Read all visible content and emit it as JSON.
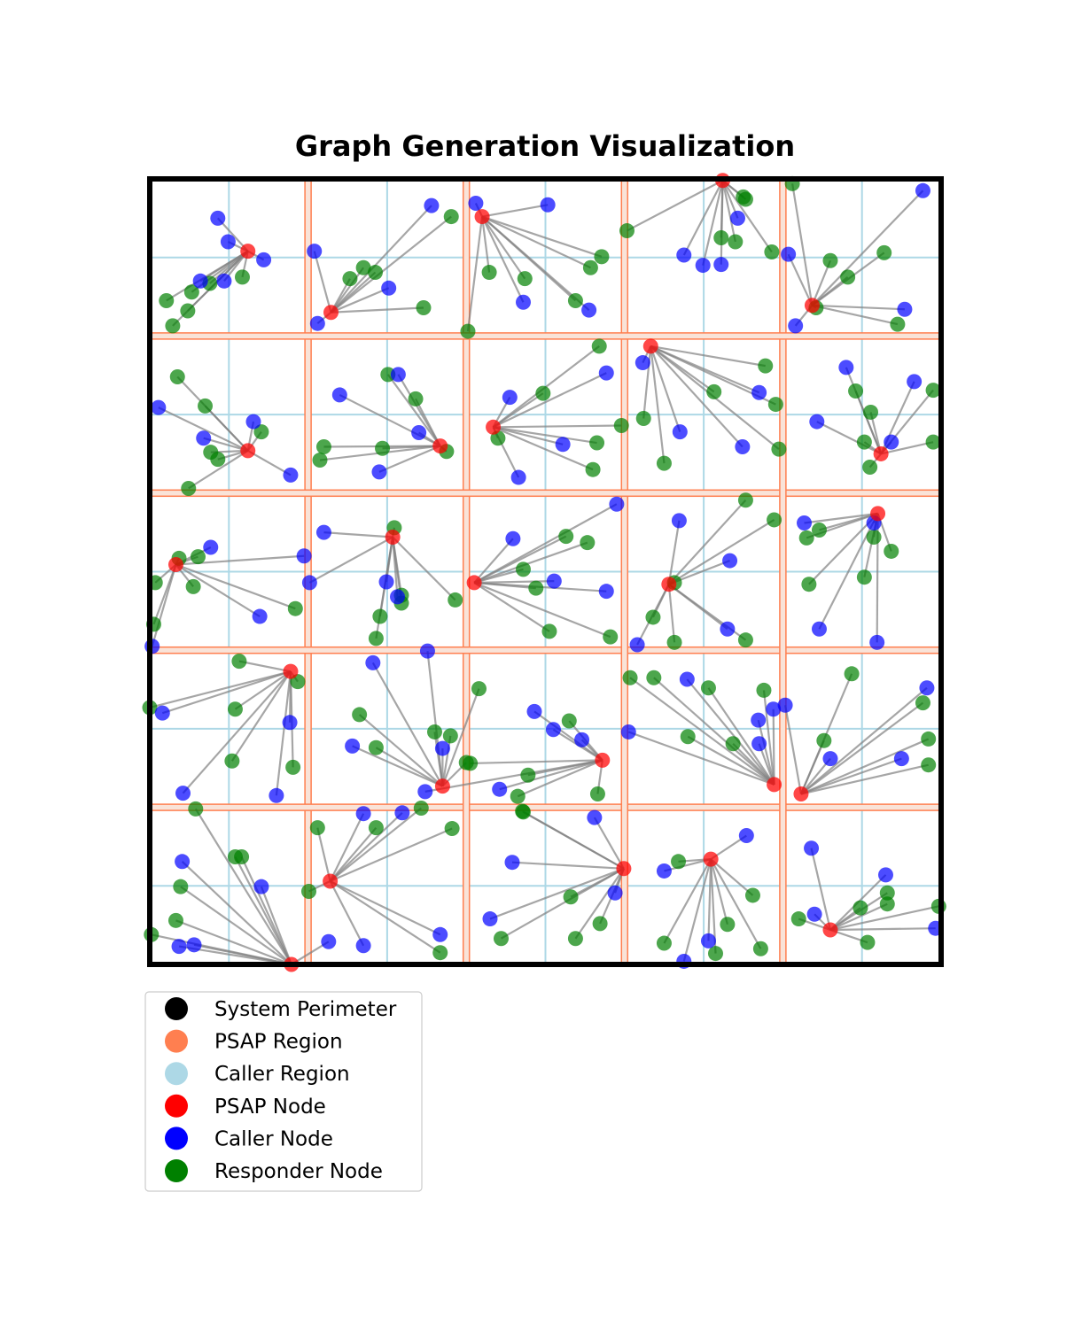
{
  "chart_data": {
    "type": "scatter",
    "title": "Graph Generation Visualization",
    "xlim": [
      0,
      10
    ],
    "ylim": [
      0,
      10
    ],
    "grid": {
      "psap_region_lines": [
        2,
        4,
        6,
        8
      ],
      "caller_region_lines": [
        1,
        3,
        5,
        7,
        9
      ]
    },
    "colors": {
      "perimeter": "#000000",
      "psap_region": "#ff7f50",
      "caller_region": "#add8e6",
      "psap_node": "#ff0000",
      "caller_node": "#0000ff",
      "responder_node": "#008000",
      "edge": "#808080"
    },
    "legend": {
      "placement": "bottom-left",
      "items": [
        {
          "label": "System Perimeter",
          "color": "#000000"
        },
        {
          "label": "PSAP Region",
          "color": "#ff7f50"
        },
        {
          "label": "Caller Region",
          "color": "#add8e6"
        },
        {
          "label": "PSAP Node",
          "color": "#ff0000"
        },
        {
          "label": "Caller Node",
          "color": "#0000ff"
        },
        {
          "label": "Responder Node",
          "color": "#008000"
        }
      ]
    },
    "clusters": [
      {
        "psap": [
          1.24,
          9.08
        ],
        "callers": [
          [
            0.86,
            9.5
          ],
          [
            0.99,
            9.2
          ],
          [
            1.44,
            8.97
          ],
          [
            0.64,
            8.7
          ],
          [
            0.94,
            8.7
          ]
        ],
        "responders": [
          [
            1.17,
            8.75
          ],
          [
            0.76,
            8.67
          ],
          [
            0.53,
            8.56
          ],
          [
            0.21,
            8.45
          ],
          [
            0.48,
            8.32
          ],
          [
            0.29,
            8.13
          ]
        ]
      },
      {
        "psap": [
          2.29,
          8.3
        ],
        "callers": [
          [
            3.56,
            9.66
          ],
          [
            2.08,
            9.08
          ],
          [
            2.12,
            8.16
          ],
          [
            3.02,
            8.61
          ]
        ],
        "responders": [
          [
            3.81,
            9.52
          ],
          [
            2.7,
            8.87
          ],
          [
            2.53,
            8.73
          ],
          [
            2.85,
            8.81
          ],
          [
            3.46,
            8.36
          ]
        ]
      },
      {
        "psap": [
          4.2,
          9.52
        ],
        "callers": [
          [
            4.12,
            9.69
          ],
          [
            5.03,
            9.67
          ],
          [
            4.72,
            8.43
          ],
          [
            5.55,
            8.33
          ]
        ],
        "responders": [
          [
            5.71,
            9.01
          ],
          [
            5.57,
            8.87
          ],
          [
            4.29,
            8.81
          ],
          [
            4.74,
            8.73
          ],
          [
            5.38,
            8.45
          ],
          [
            4.02,
            8.06
          ]
        ]
      },
      {
        "psap": [
          7.24,
          9.98
        ],
        "callers": [
          [
            7.43,
            9.5
          ],
          [
            6.75,
            9.03
          ],
          [
            6.99,
            8.9
          ],
          [
            7.22,
            8.91
          ]
        ],
        "responders": [
          [
            7.5,
            9.77
          ],
          [
            7.53,
            9.74
          ],
          [
            6.03,
            9.34
          ],
          [
            7.22,
            9.25
          ],
          [
            7.4,
            9.2
          ],
          [
            7.86,
            9.07
          ]
        ]
      },
      {
        "psap": [
          8.37,
          8.39
        ],
        "callers": [
          [
            9.77,
            9.85
          ],
          [
            8.07,
            9.04
          ],
          [
            9.54,
            8.34
          ],
          [
            8.16,
            8.13
          ]
        ],
        "responders": [
          [
            8.12,
            9.94
          ],
          [
            9.28,
            9.06
          ],
          [
            8.6,
            8.96
          ],
          [
            8.82,
            8.75
          ],
          [
            8.42,
            8.36
          ],
          [
            9.45,
            8.15
          ]
        ]
      },
      {
        "psap": [
          1.24,
          6.54
        ],
        "callers": [
          [
            0.11,
            7.09
          ],
          [
            1.31,
            6.91
          ],
          [
            0.68,
            6.7
          ],
          [
            1.78,
            6.23
          ]
        ],
        "responders": [
          [
            0.35,
            7.48
          ],
          [
            0.7,
            7.11
          ],
          [
            1.41,
            6.78
          ],
          [
            0.77,
            6.52
          ],
          [
            0.86,
            6.43
          ],
          [
            0.49,
            6.06
          ]
        ]
      },
      {
        "psap": [
          3.67,
          6.6
        ],
        "callers": [
          [
            3.14,
            7.51
          ],
          [
            2.4,
            7.25
          ],
          [
            3.4,
            6.77
          ],
          [
            2.9,
            6.27
          ]
        ],
        "responders": [
          [
            3.01,
            7.51
          ],
          [
            3.36,
            7.2
          ],
          [
            2.2,
            6.59
          ],
          [
            2.94,
            6.57
          ],
          [
            3.75,
            6.53
          ],
          [
            2.15,
            6.42
          ]
        ]
      },
      {
        "psap": [
          4.34,
          6.84
        ],
        "callers": [
          [
            5.77,
            7.53
          ],
          [
            4.55,
            7.22
          ],
          [
            5.22,
            6.62
          ],
          [
            4.66,
            6.2
          ]
        ],
        "responders": [
          [
            5.68,
            7.87
          ],
          [
            4.97,
            7.27
          ],
          [
            5.96,
            6.86
          ],
          [
            4.4,
            6.7
          ],
          [
            5.65,
            6.64
          ],
          [
            5.6,
            6.3
          ]
        ]
      },
      {
        "psap": [
          6.33,
          7.87
        ],
        "callers": [
          [
            6.23,
            7.66
          ],
          [
            7.7,
            7.28
          ],
          [
            6.7,
            6.78
          ],
          [
            7.49,
            6.59
          ]
        ],
        "responders": [
          [
            7.78,
            7.62
          ],
          [
            7.13,
            7.29
          ],
          [
            7.91,
            7.13
          ],
          [
            6.24,
            6.95
          ],
          [
            7.95,
            6.56
          ],
          [
            6.5,
            6.38
          ]
        ]
      },
      {
        "psap": [
          9.24,
          6.5
        ],
        "callers": [
          [
            8.8,
            7.6
          ],
          [
            9.66,
            7.42
          ],
          [
            8.43,
            6.91
          ],
          [
            9.37,
            6.65
          ]
        ],
        "responders": [
          [
            9.9,
            7.31
          ],
          [
            8.92,
            7.3
          ],
          [
            9.11,
            7.03
          ],
          [
            9.03,
            6.65
          ],
          [
            9.1,
            6.33
          ],
          [
            9.9,
            6.65
          ]
        ]
      },
      {
        "psap": [
          0.33,
          5.09
        ],
        "callers": [
          [
            0.77,
            5.31
          ],
          [
            1.95,
            5.2
          ],
          [
            1.39,
            4.43
          ],
          [
            0.03,
            4.05
          ]
        ],
        "responders": [
          [
            0.37,
            5.17
          ],
          [
            0.61,
            5.19
          ],
          [
            0.55,
            4.81
          ],
          [
            0.07,
            4.86
          ],
          [
            1.84,
            4.53
          ],
          [
            0.05,
            4.33
          ]
        ]
      },
      {
        "psap": [
          3.07,
          5.44
        ],
        "callers": [
          [
            2.2,
            5.5
          ],
          [
            2.02,
            4.86
          ],
          [
            2.99,
            4.87
          ],
          [
            3.13,
            4.68
          ]
        ],
        "responders": [
          [
            3.09,
            5.56
          ],
          [
            3.18,
            4.6
          ],
          [
            3.18,
            4.7
          ],
          [
            3.86,
            4.64
          ],
          [
            2.91,
            4.43
          ],
          [
            2.86,
            4.15
          ]
        ]
      },
      {
        "psap": [
          4.1,
          4.86
        ],
        "callers": [
          [
            5.9,
            5.86
          ],
          [
            4.59,
            5.42
          ],
          [
            5.11,
            4.88
          ],
          [
            5.77,
            4.75
          ]
        ],
        "responders": [
          [
            5.26,
            5.45
          ],
          [
            5.53,
            5.37
          ],
          [
            4.72,
            5.03
          ],
          [
            4.88,
            4.79
          ],
          [
            5.05,
            4.24
          ],
          [
            5.82,
            4.17
          ]
        ]
      },
      {
        "psap": [
          6.56,
          4.84
        ],
        "callers": [
          [
            6.69,
            5.65
          ],
          [
            7.33,
            5.14
          ],
          [
            7.3,
            4.27
          ],
          [
            6.16,
            4.07
          ]
        ],
        "responders": [
          [
            7.53,
            5.91
          ],
          [
            7.89,
            5.66
          ],
          [
            6.63,
            4.86
          ],
          [
            6.36,
            4.42
          ],
          [
            6.63,
            4.1
          ],
          [
            7.53,
            4.13
          ]
        ]
      },
      {
        "psap": [
          9.2,
          5.74
        ],
        "callers": [
          [
            8.27,
            5.62
          ],
          [
            9.15,
            5.62
          ],
          [
            8.46,
            4.27
          ],
          [
            9.19,
            4.1
          ]
        ],
        "responders": [
          [
            8.46,
            5.53
          ],
          [
            8.3,
            5.43
          ],
          [
            9.15,
            5.44
          ],
          [
            9.37,
            5.26
          ],
          [
            8.33,
            4.84
          ],
          [
            9.03,
            4.93
          ]
        ]
      },
      {
        "psap": [
          1.78,
          3.73
        ],
        "callers": [
          [
            0.16,
            3.2
          ],
          [
            1.77,
            3.08
          ],
          [
            0.42,
            2.18
          ],
          [
            1.6,
            2.15
          ]
        ],
        "responders": [
          [
            1.13,
            3.86
          ],
          [
            1.87,
            3.6
          ],
          [
            0,
            3.27
          ],
          [
            1.08,
            3.25
          ],
          [
            1.81,
            2.51
          ],
          [
            1.04,
            2.59
          ]
        ]
      },
      {
        "psap": [
          3.7,
          2.27
        ],
        "callers": [
          [
            2.82,
            3.84
          ],
          [
            3.51,
            3.99
          ],
          [
            3.7,
            2.75
          ],
          [
            2.56,
            2.78
          ]
        ],
        "responders": [
          [
            2.65,
            3.18
          ],
          [
            3.6,
            2.96
          ],
          [
            3.8,
            2.91
          ],
          [
            4.0,
            2.57
          ],
          [
            2.86,
            2.76
          ],
          [
            4.16,
            3.51
          ]
        ]
      },
      {
        "psap": [
          5.72,
          2.6
        ],
        "callers": [
          [
            4.86,
            3.22
          ],
          [
            5.1,
            2.99
          ],
          [
            5.46,
            2.86
          ],
          [
            4.42,
            2.23
          ],
          [
            3.48,
            2.2
          ]
        ],
        "responders": [
          [
            4.05,
            2.56
          ],
          [
            5.3,
            3.1
          ],
          [
            4.78,
            2.41
          ],
          [
            4.65,
            2.14
          ],
          [
            5.66,
            2.17
          ]
        ]
      },
      {
        "psap": [
          7.89,
          2.29
        ],
        "callers": [
          [
            6.05,
            2.96
          ],
          [
            7.69,
            3.11
          ],
          [
            7.88,
            3.25
          ],
          [
            7.7,
            2.81
          ],
          [
            6.79,
            3.63
          ]
        ],
        "responders": [
          [
            6.07,
            3.65
          ],
          [
            6.37,
            3.65
          ],
          [
            7.06,
            3.52
          ],
          [
            7.76,
            3.49
          ],
          [
            6.8,
            2.9
          ],
          [
            7.37,
            2.81
          ]
        ]
      },
      {
        "psap": [
          8.23,
          2.17
        ],
        "callers": [
          [
            8.03,
            3.3
          ],
          [
            9.82,
            3.52
          ],
          [
            8.6,
            2.62
          ],
          [
            9.5,
            2.62
          ]
        ],
        "responders": [
          [
            8.87,
            3.7
          ],
          [
            9.77,
            3.33
          ],
          [
            8.52,
            2.85
          ],
          [
            9.84,
            2.87
          ],
          [
            9.84,
            2.54
          ]
        ]
      },
      {
        "psap": [
          1.79,
          0
        ],
        "callers": [
          [
            0.41,
            1.31
          ],
          [
            1.41,
            0.99
          ],
          [
            0.56,
            0.25
          ],
          [
            2.26,
            0.29
          ],
          [
            0.37,
            0.23
          ]
        ],
        "responders": [
          [
            0.58,
            1.98
          ],
          [
            1.08,
            1.37
          ],
          [
            1.16,
            1.37
          ],
          [
            0.39,
            0.99
          ],
          [
            0.33,
            0.56
          ],
          [
            0.02,
            0.38
          ]
        ]
      },
      {
        "psap": [
          2.28,
          1.06
        ],
        "callers": [
          [
            2.7,
            1.92
          ],
          [
            3.19,
            1.93
          ],
          [
            3.67,
            0.38
          ],
          [
            2.7,
            0.24
          ]
        ],
        "responders": [
          [
            2.01,
            0.93
          ],
          [
            2.12,
            1.74
          ],
          [
            2.86,
            1.74
          ],
          [
            3.43,
            1.99
          ],
          [
            3.82,
            1.73
          ],
          [
            3.67,
            0.15
          ]
        ]
      },
      {
        "psap": [
          5.99,
          1.22
        ],
        "callers": [
          [
            5.62,
            1.87
          ],
          [
            4.58,
            1.3
          ],
          [
            5.88,
            0.91
          ],
          [
            4.3,
            0.58
          ]
        ],
        "responders": [
          [
            4.71,
            1.95
          ],
          [
            4.72,
            1.94
          ],
          [
            5.32,
            0.86
          ],
          [
            5.69,
            0.52
          ],
          [
            4.44,
            0.33
          ],
          [
            5.38,
            0.33
          ]
        ]
      },
      {
        "psap": [
          7.09,
          1.34
        ],
        "callers": [
          [
            7.54,
            1.64
          ],
          [
            6.5,
            1.19
          ],
          [
            7.06,
            0.3
          ],
          [
            6.75,
            0.04
          ]
        ],
        "responders": [
          [
            6.68,
            1.31
          ],
          [
            7.62,
            0.88
          ],
          [
            7.3,
            0.51
          ],
          [
            6.5,
            0.27
          ],
          [
            7.72,
            0.2
          ],
          [
            7.15,
            0.14
          ]
        ]
      },
      {
        "psap": [
          8.6,
          0.44
        ],
        "callers": [
          [
            8.36,
            1.48
          ],
          [
            9.3,
            1.14
          ],
          [
            8.4,
            0.64
          ],
          [
            9.93,
            0.46
          ]
        ],
        "responders": [
          [
            8.98,
            0.72
          ],
          [
            9.32,
            0.91
          ],
          [
            9.32,
            0.77
          ],
          [
            9.97,
            0.74
          ],
          [
            8.2,
            0.58
          ],
          [
            9.07,
            0.28
          ]
        ]
      }
    ]
  }
}
